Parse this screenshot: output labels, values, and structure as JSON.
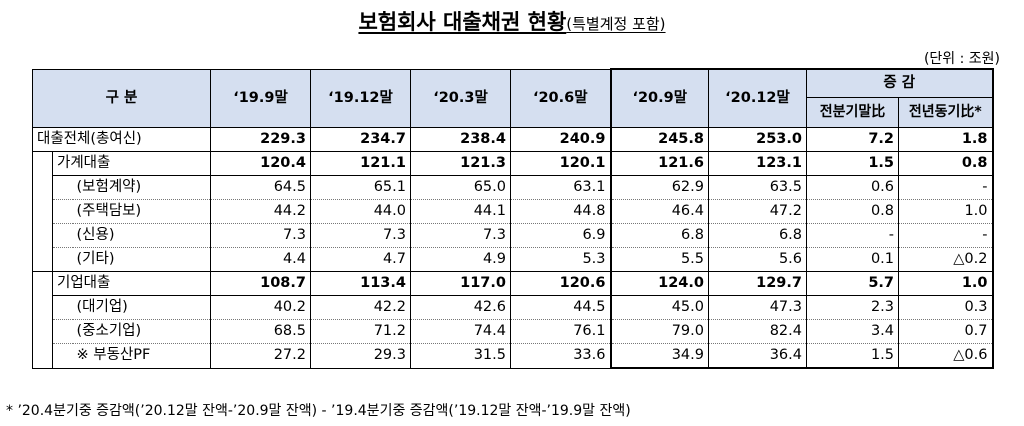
{
  "title": {
    "main": "보험회사 대출채권 현황",
    "sub": "(특별계정 포함)"
  },
  "unit": "(단위 : 조원)",
  "header": {
    "category": "구  분",
    "periods": [
      "‘19.9말",
      "‘19.12말",
      "‘20.3말",
      "‘20.6말",
      "‘20.9말",
      "‘20.12말"
    ],
    "change": "증   감",
    "change_qoq": "전분기말比",
    "change_yoy": "전년동기比*"
  },
  "rows": [
    {
      "label": "대출전체(총여신)",
      "values": [
        "229.3",
        "234.7",
        "238.4",
        "240.9",
        "245.8",
        "253.0",
        "7.2",
        "1.8"
      ]
    },
    {
      "label": "가계대출",
      "values": [
        "120.4",
        "121.1",
        "121.3",
        "120.1",
        "121.6",
        "123.1",
        "1.5",
        "0.8"
      ]
    },
    {
      "label": "(보험계약)",
      "values": [
        "64.5",
        "65.1",
        "65.0",
        "63.1",
        "62.9",
        "63.5",
        "0.6",
        "-"
      ]
    },
    {
      "label": "(주택담보)",
      "values": [
        "44.2",
        "44.0",
        "44.1",
        "44.8",
        "46.4",
        "47.2",
        "0.8",
        "1.0"
      ]
    },
    {
      "label": "(신용)",
      "values": [
        "7.3",
        "7.3",
        "7.3",
        "6.9",
        "6.8",
        "6.8",
        "-",
        "-"
      ]
    },
    {
      "label": "(기타)",
      "values": [
        "4.4",
        "4.7",
        "4.9",
        "5.3",
        "5.5",
        "5.6",
        "0.1",
        "△0.2"
      ]
    },
    {
      "label": "기업대출",
      "values": [
        "108.7",
        "113.4",
        "117.0",
        "120.6",
        "124.0",
        "129.7",
        "5.7",
        "1.0"
      ]
    },
    {
      "label": "(대기업)",
      "values": [
        "40.2",
        "42.2",
        "42.6",
        "44.5",
        "45.0",
        "47.3",
        "2.3",
        "0.3"
      ]
    },
    {
      "label": "(중소기업)",
      "values": [
        "68.5",
        "71.2",
        "74.4",
        "76.1",
        "79.0",
        "82.4",
        "3.4",
        "0.7"
      ]
    },
    {
      "label": "※ 부동산PF",
      "values": [
        "27.2",
        "29.3",
        "31.5",
        "33.6",
        "34.9",
        "36.4",
        "1.5",
        "△0.6"
      ]
    }
  ],
  "footnote": "* ’20.4분기중 증감액(’20.12말 잔액-’20.9말 잔액) - ’19.4분기중 증감액(’19.12말 잔액-’19.9말 잔액)"
}
